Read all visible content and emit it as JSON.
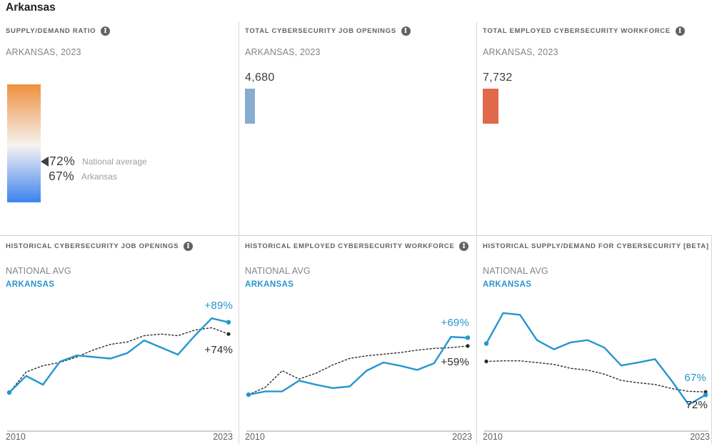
{
  "page_title": "Arkansas",
  "colors": {
    "accent_blue": "#2596d1",
    "line_dark": "#2b2b2b",
    "bar_blue": "#86add0",
    "bar_orange": "#e0694a",
    "gradient_top": "#ef913e",
    "gradient_bottom": "#3c82f0",
    "marker_dark": "#3c4043"
  },
  "panels": {
    "supply_demand": {
      "header": "SUPPLY/DEMAND RATIO",
      "subtitle": "ARKANSAS, 2023",
      "national": {
        "value": "72%",
        "label": "National average"
      },
      "state": {
        "value": "67%",
        "label": "Arkansas"
      }
    },
    "job_openings": {
      "header": "TOTAL CYBERSECURITY JOB OPENINGS",
      "subtitle": "ARKANSAS, 2023",
      "value": "4,680"
    },
    "workforce": {
      "header": "TOTAL EMPLOYED CYBERSECURITY WORKFORCE",
      "subtitle": "ARKANSAS, 2023",
      "value": "7,732"
    },
    "hist_openings": {
      "header": "HISTORICAL CYBERSECURITY JOB OPENINGS",
      "legend_national": "NATIONAL AVG",
      "legend_state": "ARKANSAS"
    },
    "hist_workforce": {
      "header": "HISTORICAL EMPLOYED CYBERSECURITY WORKFORCE",
      "legend_national": "NATIONAL AVG",
      "legend_state": "ARKANSAS"
    },
    "hist_supply_demand": {
      "header": "HISTORICAL SUPPLY/DEMAND FOR CYBERSECURITY [BETA]",
      "legend_national": "NATIONAL AVG",
      "legend_state": "ARKANSAS"
    }
  },
  "chart_data": [
    {
      "type": "line",
      "title": "Historical Cybersecurity Job Openings (% growth since 2010)",
      "x": [
        2010,
        2011,
        2012,
        2013,
        2014,
        2015,
        2016,
        2017,
        2018,
        2019,
        2020,
        2021,
        2022,
        2023
      ],
      "x_labels": [
        "2010",
        "2023"
      ],
      "ylim": [
        0,
        105
      ],
      "plot": {
        "top": 22,
        "bottom": 138
      },
      "series": [
        {
          "name": "National avg",
          "color": "#2b2b2b",
          "dashed": true,
          "start_dot": false,
          "end_label": "+74%",
          "values": [
            0,
            26,
            34,
            38,
            45,
            54,
            61,
            64,
            72,
            74,
            72,
            79,
            82,
            74
          ]
        },
        {
          "name": "Arkansas",
          "color": "#2596d1",
          "dashed": false,
          "start_dot": true,
          "end_label": "+89%",
          "values": [
            0,
            21,
            10,
            39,
            47,
            45,
            43,
            50,
            66,
            57,
            48,
            72,
            94,
            89
          ]
        }
      ]
    },
    {
      "type": "line",
      "title": "Historical Employed Cybersecurity Workforce (% growth since 2010)",
      "x": [
        2010,
        2011,
        2012,
        2013,
        2014,
        2015,
        2016,
        2017,
        2018,
        2019,
        2020,
        2021,
        2022,
        2023
      ],
      "x_labels": [
        "2010",
        "2023"
      ],
      "ylim": [
        0,
        110
      ],
      "plot": {
        "top": 14,
        "bottom": 141
      },
      "series": [
        {
          "name": "National avg",
          "color": "#2b2b2b",
          "dashed": true,
          "start_dot": false,
          "end_label": "+59%",
          "values": [
            0,
            9,
            29,
            19,
            26,
            36,
            44,
            47,
            49,
            51,
            54,
            56,
            57,
            59
          ]
        },
        {
          "name": "Arkansas",
          "color": "#2596d1",
          "dashed": false,
          "start_dot": true,
          "end_label": "+69%",
          "values": [
            0,
            4,
            4,
            17,
            12,
            8,
            10,
            29,
            39,
            35,
            30,
            38,
            70,
            69
          ]
        }
      ]
    },
    {
      "type": "line",
      "title": "Historical Supply/Demand for Cybersecurity (ratio %)",
      "x": [
        2010,
        2011,
        2012,
        2013,
        2014,
        2015,
        2016,
        2017,
        2018,
        2019,
        2020,
        2021,
        2022,
        2023
      ],
      "x_labels": [
        "2010",
        "2023"
      ],
      "ylim": [
        45,
        215
      ],
      "plot": {
        "top": 22,
        "bottom": 159
      },
      "series": [
        {
          "name": "National avg",
          "color": "#2b2b2b",
          "dashed": true,
          "start_dot": true,
          "end_label": "72%",
          "values": [
            125,
            126,
            126,
            123,
            120,
            113,
            110,
            103,
            92,
            88,
            85,
            78,
            73,
            72
          ]
        },
        {
          "name": "Arkansas",
          "color": "#2596d1",
          "dashed": false,
          "start_dot": true,
          "end_label": "67%",
          "values": [
            156,
            209,
            206,
            162,
            146,
            158,
            162,
            149,
            118,
            123,
            129,
            91,
            50,
            67
          ]
        }
      ]
    }
  ]
}
